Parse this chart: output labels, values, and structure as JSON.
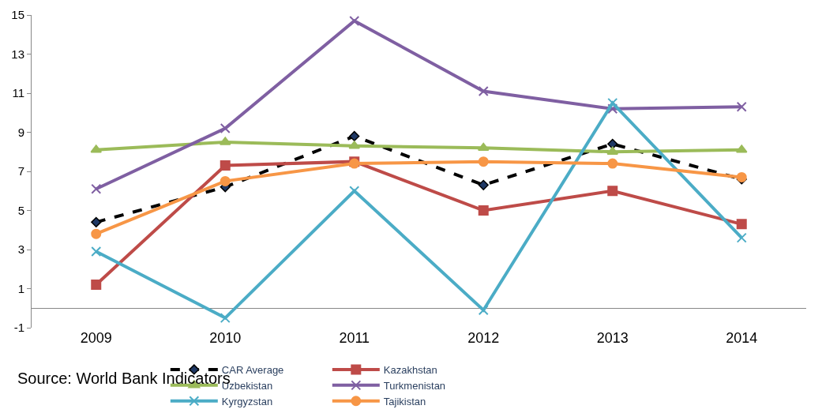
{
  "chart_data": {
    "type": "line",
    "categories": [
      "2009",
      "2010",
      "2011",
      "2012",
      "2013",
      "2014"
    ],
    "series": [
      {
        "name": "CAR Average",
        "color": "#000000",
        "line_style": "dashed",
        "marker": "diamond",
        "values": [
          4.4,
          6.2,
          8.8,
          6.3,
          8.4,
          6.6
        ]
      },
      {
        "name": "Kazakhstan",
        "color": "#be4b48",
        "marker": "square",
        "values": [
          1.2,
          7.3,
          7.5,
          5.0,
          6.0,
          4.3
        ]
      },
      {
        "name": "Uzbekistan",
        "color": "#9bbb59",
        "marker": "triangle",
        "values": [
          8.1,
          8.5,
          8.3,
          8.2,
          8.0,
          8.1
        ]
      },
      {
        "name": "Turkmenistan",
        "color": "#7f5fa2",
        "marker": "cross",
        "values": [
          6.1,
          9.2,
          14.7,
          11.1,
          10.2,
          10.3
        ]
      },
      {
        "name": "Kyrgyzstan",
        "color": "#4bacc6",
        "marker": "cross",
        "values": [
          2.9,
          -0.5,
          6.0,
          -0.1,
          10.5,
          3.6
        ]
      },
      {
        "name": "Tajikistan",
        "color": "#f79646",
        "marker": "circle",
        "values": [
          3.8,
          6.5,
          7.4,
          7.5,
          7.4,
          6.7
        ]
      }
    ],
    "ylim": [
      -1,
      15
    ],
    "yticks": [
      -1,
      1,
      3,
      5,
      7,
      9,
      11,
      13,
      15
    ],
    "legend": "bottom",
    "line_style": "solid",
    "annotations": [
      "Source: World Bank Indicators"
    ]
  }
}
